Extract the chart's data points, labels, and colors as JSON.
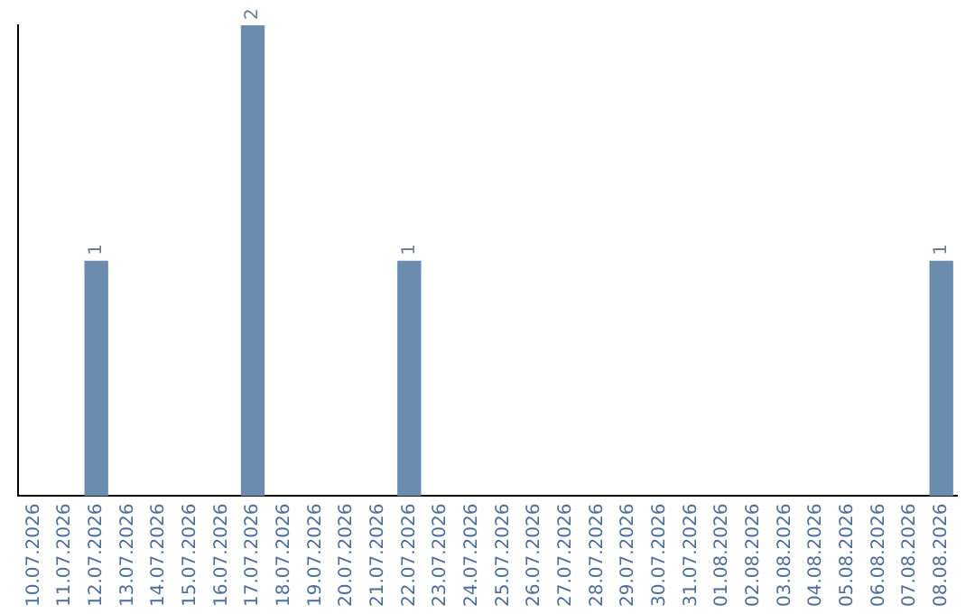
{
  "chart_data": {
    "type": "bar",
    "categories": [
      "10.07.2026",
      "11.07.2026",
      "12.07.2026",
      "13.07.2026",
      "14.07.2026",
      "15.07.2026",
      "16.07.2026",
      "17.07.2026",
      "18.07.2026",
      "19.07.2026",
      "20.07.2026",
      "21.07.2026",
      "22.07.2026",
      "23.07.2026",
      "24.07.2026",
      "25.07.2026",
      "26.07.2026",
      "27.07.2026",
      "28.07.2026",
      "29.07.2026",
      "30.07.2026",
      "31.07.2026",
      "01.08.2026",
      "02.08.2026",
      "03.08.2026",
      "04.08.2026",
      "05.08.2026",
      "06.08.2026",
      "07.08.2026",
      "08.08.2026"
    ],
    "values": [
      0,
      0,
      1,
      0,
      0,
      0,
      0,
      2,
      0,
      0,
      0,
      0,
      1,
      0,
      0,
      0,
      0,
      0,
      0,
      0,
      0,
      0,
      0,
      0,
      0,
      0,
      0,
      0,
      0,
      1
    ],
    "value_labels": [
      null,
      null,
      "1",
      null,
      null,
      null,
      null,
      "2",
      null,
      null,
      null,
      null,
      "1",
      null,
      null,
      null,
      null,
      null,
      null,
      null,
      null,
      null,
      null,
      null,
      null,
      null,
      null,
      null,
      null,
      "1"
    ],
    "color": "#6a8caf",
    "grid": false,
    "legend": false
  }
}
